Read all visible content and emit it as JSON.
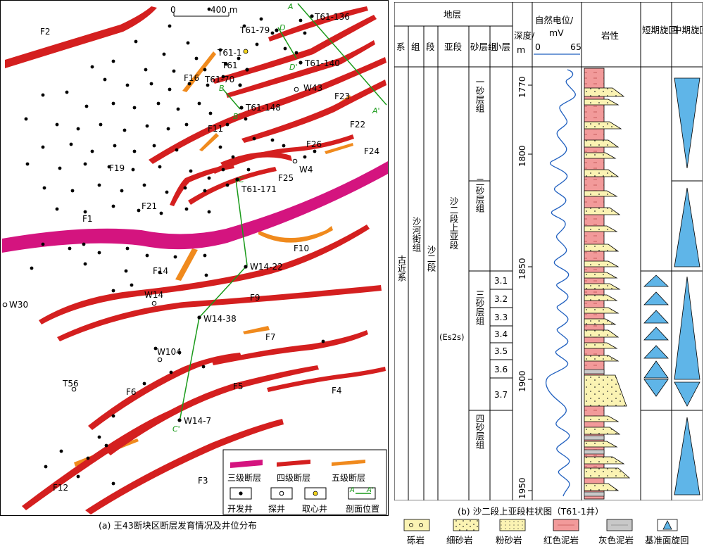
{
  "map": {
    "caption": "(a) 王43断块区断层发育情况及井位分布",
    "scale": {
      "zero": "0",
      "length": "400 m"
    },
    "fault_labels": [
      "F2",
      "F16",
      "F23",
      "F22",
      "F24",
      "F19",
      "F11",
      "F26",
      "F25",
      "F21",
      "F1",
      "F10",
      "F14",
      "F9",
      "F7",
      "F6",
      "F5",
      "F4",
      "F12",
      "F3"
    ],
    "well_labels": [
      "T61-136",
      "T61-79",
      "T61-1",
      "T61",
      "T61-140",
      "T61-70",
      "W43",
      "T61-148",
      "W4",
      "T61-171",
      "W14-22",
      "W14",
      "W30",
      "W14-38",
      "W104",
      "T56",
      "W14-7"
    ],
    "section_labels": [
      "A",
      "A'",
      "D",
      "D'",
      "B",
      "B'",
      "C",
      "C'"
    ],
    "legend": {
      "row1": [
        "三级断层",
        "四级断层",
        "五级断层"
      ],
      "row2": [
        "开发井",
        "探井",
        "取心井",
        "剖面位置"
      ],
      "section_a": "A",
      "section_a2": "A'"
    }
  },
  "column": {
    "caption": "(b) 沙二段上亚段柱状图（T61-1井）",
    "header": {
      "strata": "地层",
      "sub": [
        "系",
        "组",
        "段",
        "亚段",
        "砂层组",
        "小层"
      ],
      "depth_title": "深度/",
      "depth_unit": "m",
      "sp_title": "自然电位/",
      "sp_unit": "mV",
      "sp_min": "0",
      "sp_max": "65",
      "lithology": "岩性",
      "short_cycle": "短期旋回",
      "mid_cycle": "中期旋回"
    },
    "system": "古近系",
    "formation": "沙河街组",
    "member": "沙二段",
    "submember": "沙二段上亚段",
    "submember_code": "(Es2s)",
    "sand_groups": [
      "一砂层组",
      "二砂层组",
      "三砂层组",
      "四砂层组"
    ],
    "layers": [
      "3.1",
      "3.2",
      "3.3",
      "3.4",
      "3.5",
      "3.6",
      "3.7"
    ],
    "depth_ticks": [
      "1770",
      "1800",
      "1850",
      "1900",
      "1950"
    ]
  },
  "legend_bottom": [
    "砾岩",
    "细砂岩",
    "粉砂岩",
    "红色泥岩",
    "灰色泥岩",
    "基准面旋回"
  ],
  "colors": {
    "third_fault": "#d4147f",
    "fourth_fault": "#d41f1f",
    "fifth_fault": "#f08a1d",
    "sandstone": "#fbf3b3",
    "red_mudstone": "#f29a9a",
    "gray_mudstone": "#c8c8c8",
    "cycle": "#5fb5e8",
    "sp_curve": "#1f5fbf",
    "section_line": "#1a9a1a"
  }
}
